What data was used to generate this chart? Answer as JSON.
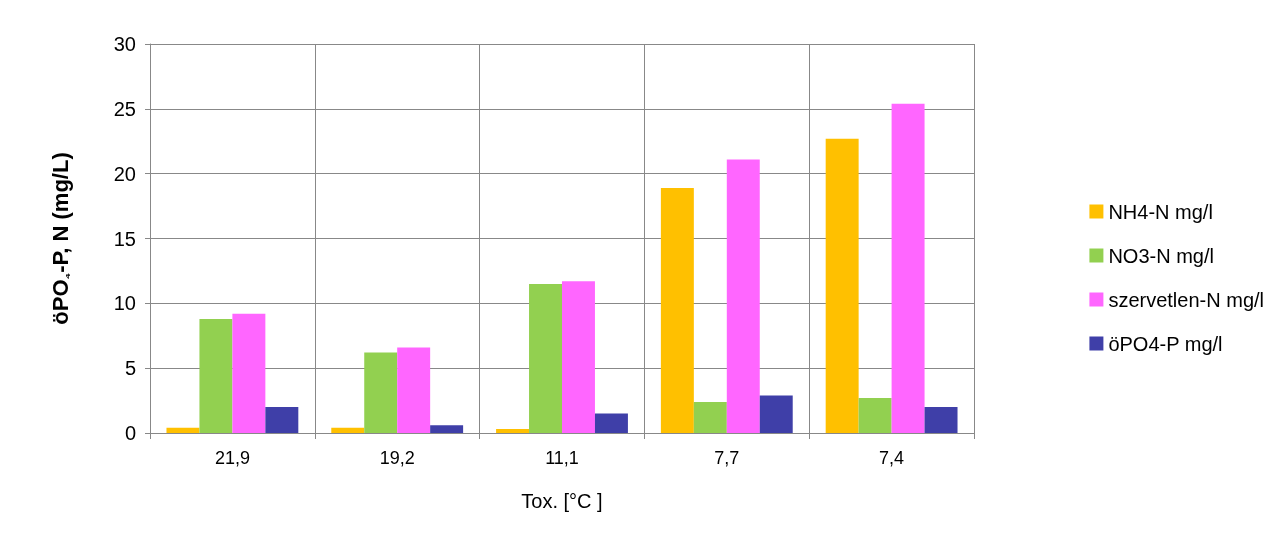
{
  "chart_data": {
    "type": "bar",
    "xlabel": "Tox. [°C ]",
    "ylabel": "öPO₄-P, N (mg/L)",
    "categories": [
      "21,9",
      "19,2",
      "11,1",
      "7,7",
      "7,4"
    ],
    "series": [
      {
        "name": "NH4-N mg/l",
        "color": "#ffc000",
        "values": [
          0.4,
          0.4,
          0.3,
          18.9,
          22.7
        ]
      },
      {
        "name": "NO3-N mg/l",
        "color": "#92d050",
        "values": [
          8.8,
          6.2,
          11.5,
          2.4,
          2.7
        ]
      },
      {
        "name": "szervetlen-N mg/l",
        "color": "#ff66ff",
        "values": [
          9.2,
          6.6,
          11.7,
          21.1,
          25.4
        ]
      },
      {
        "name": "öPO4-P mg/l",
        "color": "#3f3fa8",
        "values": [
          2.0,
          0.6,
          1.5,
          2.9,
          2.0
        ]
      }
    ],
    "ylim": [
      0,
      30
    ],
    "yticks": [
      0,
      5,
      10,
      15,
      20,
      25,
      30
    ],
    "grid": true,
    "legend": "right"
  }
}
